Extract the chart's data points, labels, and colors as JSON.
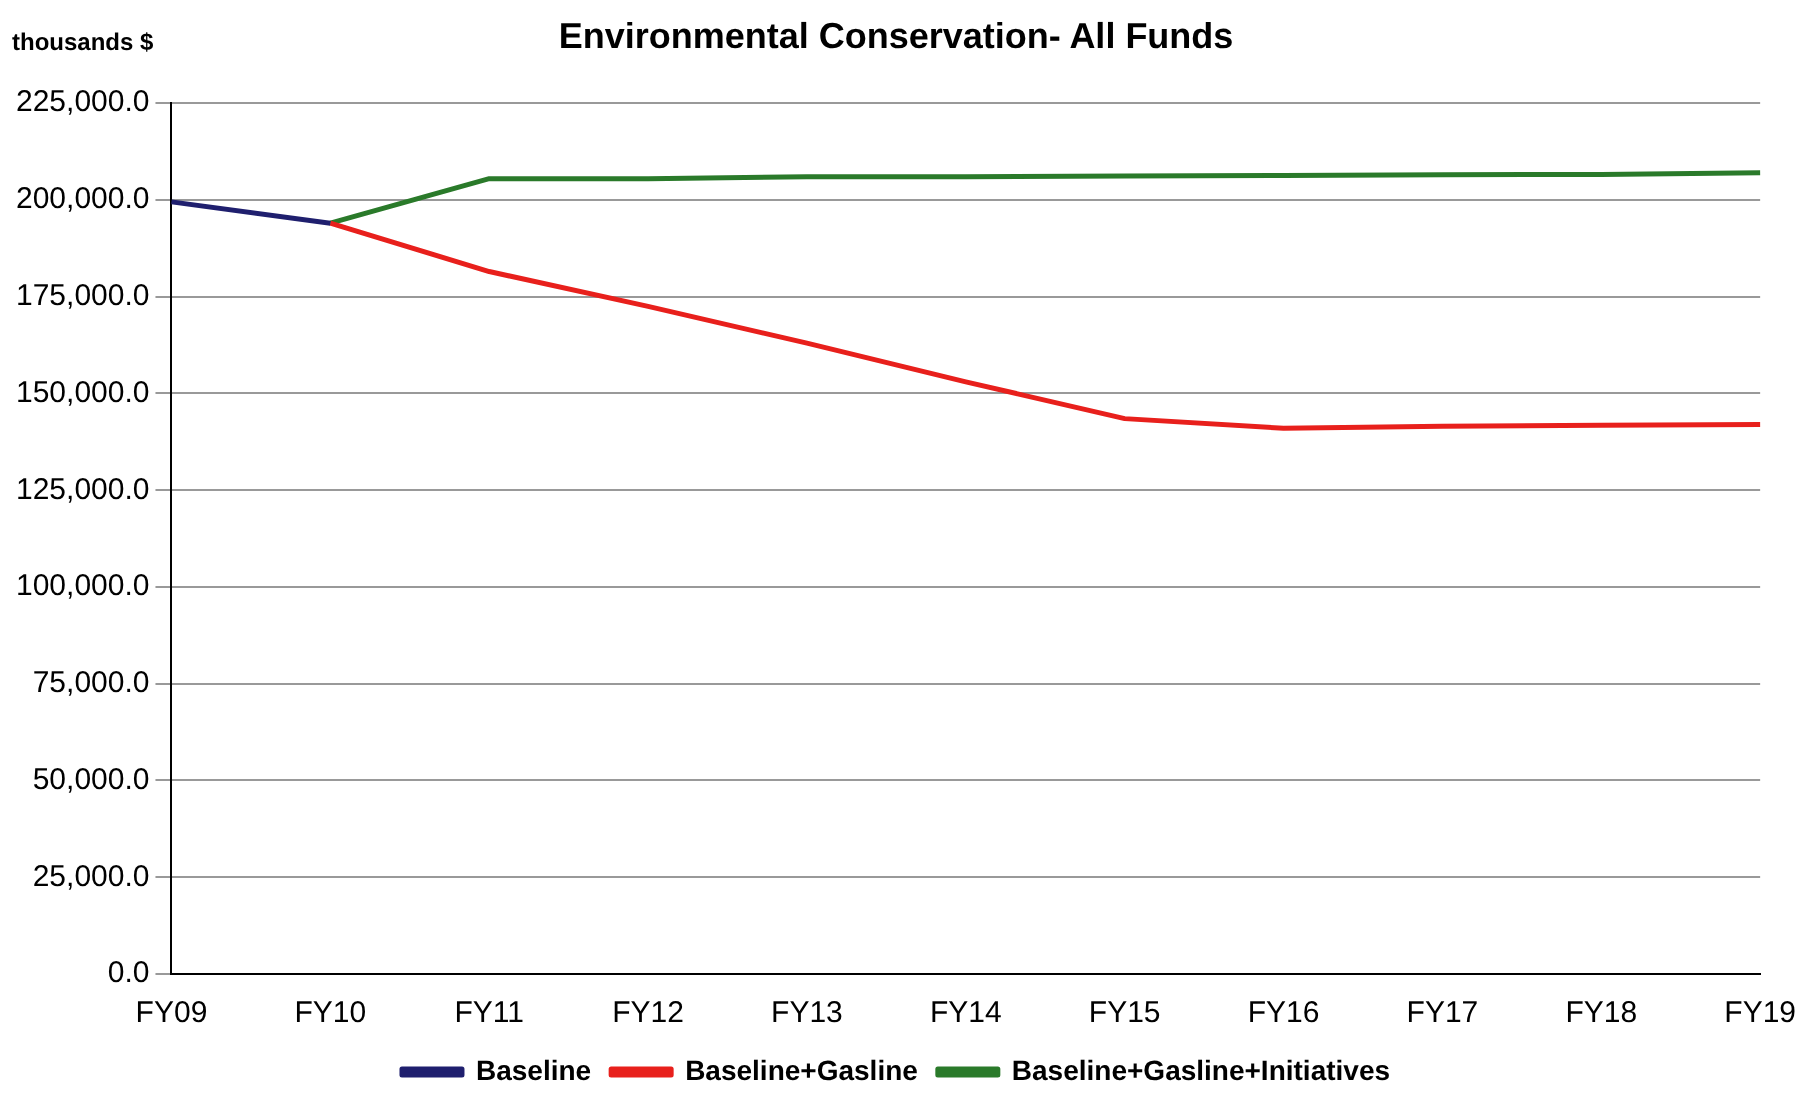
{
  "chart_data": {
    "type": "line",
    "title": "Environmental Conservation- All Funds",
    "ylabel": "thousands $",
    "categories": [
      "FY09",
      "FY10",
      "FY11",
      "FY12",
      "FY13",
      "FY14",
      "FY15",
      "FY16",
      "FY17",
      "FY18",
      "FY19"
    ],
    "series": [
      {
        "name": "Baseline",
        "color": "#1f1f6e",
        "values": [
          199500,
          194000,
          null,
          null,
          null,
          null,
          null,
          null,
          null,
          null,
          null
        ]
      },
      {
        "name": "Baseline+Gasline",
        "color": "#e8201c",
        "values": [
          null,
          194000,
          181500,
          172500,
          163000,
          153000,
          143500,
          141000,
          141500,
          141800,
          142000
        ]
      },
      {
        "name": "Baseline+Gasline+Initiatives",
        "color": "#2a7a2a",
        "values": [
          null,
          194000,
          205500,
          205500,
          206000,
          206000,
          206200,
          206300,
          206500,
          206600,
          207000
        ]
      }
    ],
    "ylim": [
      0,
      225000
    ],
    "yticks": [
      {
        "value": 0,
        "label": "0.0"
      },
      {
        "value": 25000,
        "label": "25,000.0"
      },
      {
        "value": 50000,
        "label": "50,000.0"
      },
      {
        "value": 75000,
        "label": "75,000.0"
      },
      {
        "value": 100000,
        "label": "100,000.0"
      },
      {
        "value": 125000,
        "label": "125,000.0"
      },
      {
        "value": 150000,
        "label": "150,000.0"
      },
      {
        "value": 175000,
        "label": "175,000.0"
      },
      {
        "value": 200000,
        "label": "200,000.0"
      },
      {
        "value": 225000,
        "label": "225,000.0"
      }
    ],
    "grid": "y",
    "legend": "bottom",
    "marker": "none",
    "line_style": "solid"
  }
}
